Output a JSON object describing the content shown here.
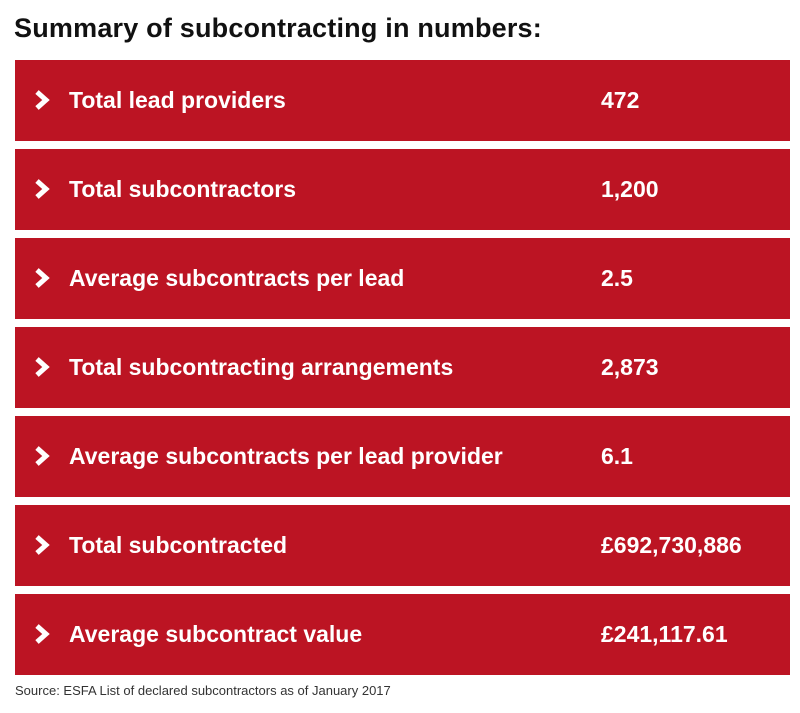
{
  "title": "Summary of subcontracting in numbers:",
  "accent_color": "#bc1423",
  "row_icon": "chevron-right-icon",
  "rows": [
    {
      "label": "Total lead providers",
      "value": "472"
    },
    {
      "label": "Total subcontractors",
      "value": "1,200"
    },
    {
      "label": "Average subcontracts per lead",
      "value": "2.5"
    },
    {
      "label": "Total subcontracting arrangements",
      "value": "2,873"
    },
    {
      "label": "Average subcontracts per lead provider",
      "value": "6.1"
    },
    {
      "label": "Total subcontracted",
      "value": "£692,730,886"
    },
    {
      "label": "Average subcontract value",
      "value": "£241,117.61"
    }
  ],
  "source": "Source: ESFA List of declared subcontractors as of January 2017"
}
